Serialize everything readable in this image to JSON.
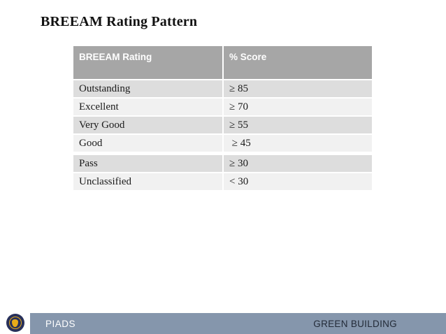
{
  "slide": {
    "title": "BREEAM Rating Pattern"
  },
  "table": {
    "headers": [
      "BREEAM Rating",
      "% Score"
    ],
    "rows": [
      {
        "rating": "Outstanding",
        "score": "≥ 85"
      },
      {
        "rating": "Excellent",
        "score": "≥ 70"
      },
      {
        "rating": "Very Good",
        "score": "≥ 55"
      },
      {
        "rating": "Good",
        "score": " ≥ 45"
      },
      {
        "rating": "Pass",
        "score": "≥ 30"
      },
      {
        "rating": "Unclassified",
        "score": "< 30"
      }
    ]
  },
  "footer": {
    "left_label": "PIADS",
    "right_label": "GREEN BUILDING",
    "logo": "piads-seal"
  },
  "colors": {
    "header_bg": "#a6a6a6",
    "band_dark": "#dddddd",
    "band_light": "#f1f1f1",
    "footer_bar": "#8596ac",
    "footer_dark_text": "#232b38",
    "seal_navy": "#28305a",
    "seal_gold": "#e8ac1a"
  }
}
